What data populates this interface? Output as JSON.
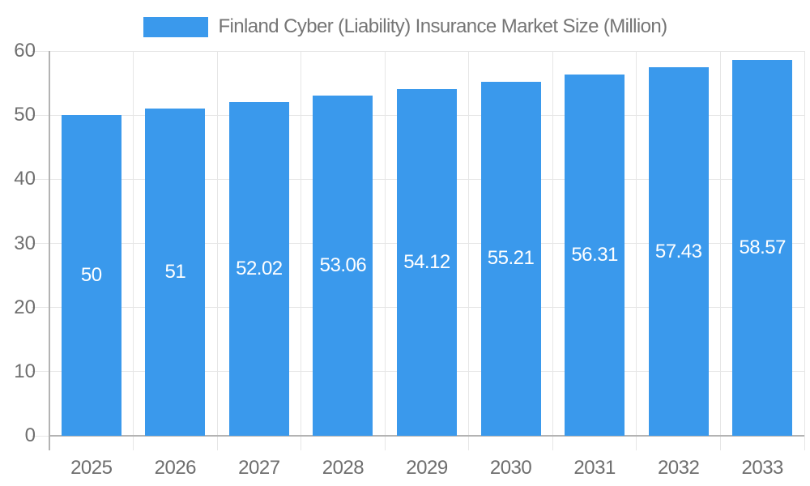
{
  "chart_data": {
    "type": "bar",
    "title": "Finland Cyber (Liability) Insurance Market Size (Million)",
    "categories": [
      "2025",
      "2026",
      "2027",
      "2028",
      "2029",
      "2030",
      "2031",
      "2032",
      "2033"
    ],
    "values": [
      50,
      51,
      52.02,
      53.06,
      54.12,
      55.21,
      56.31,
      57.43,
      58.57
    ],
    "value_labels": [
      "50",
      "51",
      "52.02",
      "53.06",
      "54.12",
      "55.21",
      "56.31",
      "57.43",
      "58.57"
    ],
    "xlabel": "",
    "ylabel": "",
    "ylim": [
      0,
      60
    ],
    "yticks": [
      0,
      10,
      20,
      30,
      40,
      50,
      60
    ],
    "grid": true,
    "legend_position": "top"
  },
  "colors": {
    "bar": "#3A99EC",
    "grid": "#E6E6E6",
    "axis": "#B3B3B3",
    "axis_text": "#6E6E6E",
    "title_text": "#757575",
    "value_text": "#FFFFFF",
    "background": "#FFFFFF"
  }
}
